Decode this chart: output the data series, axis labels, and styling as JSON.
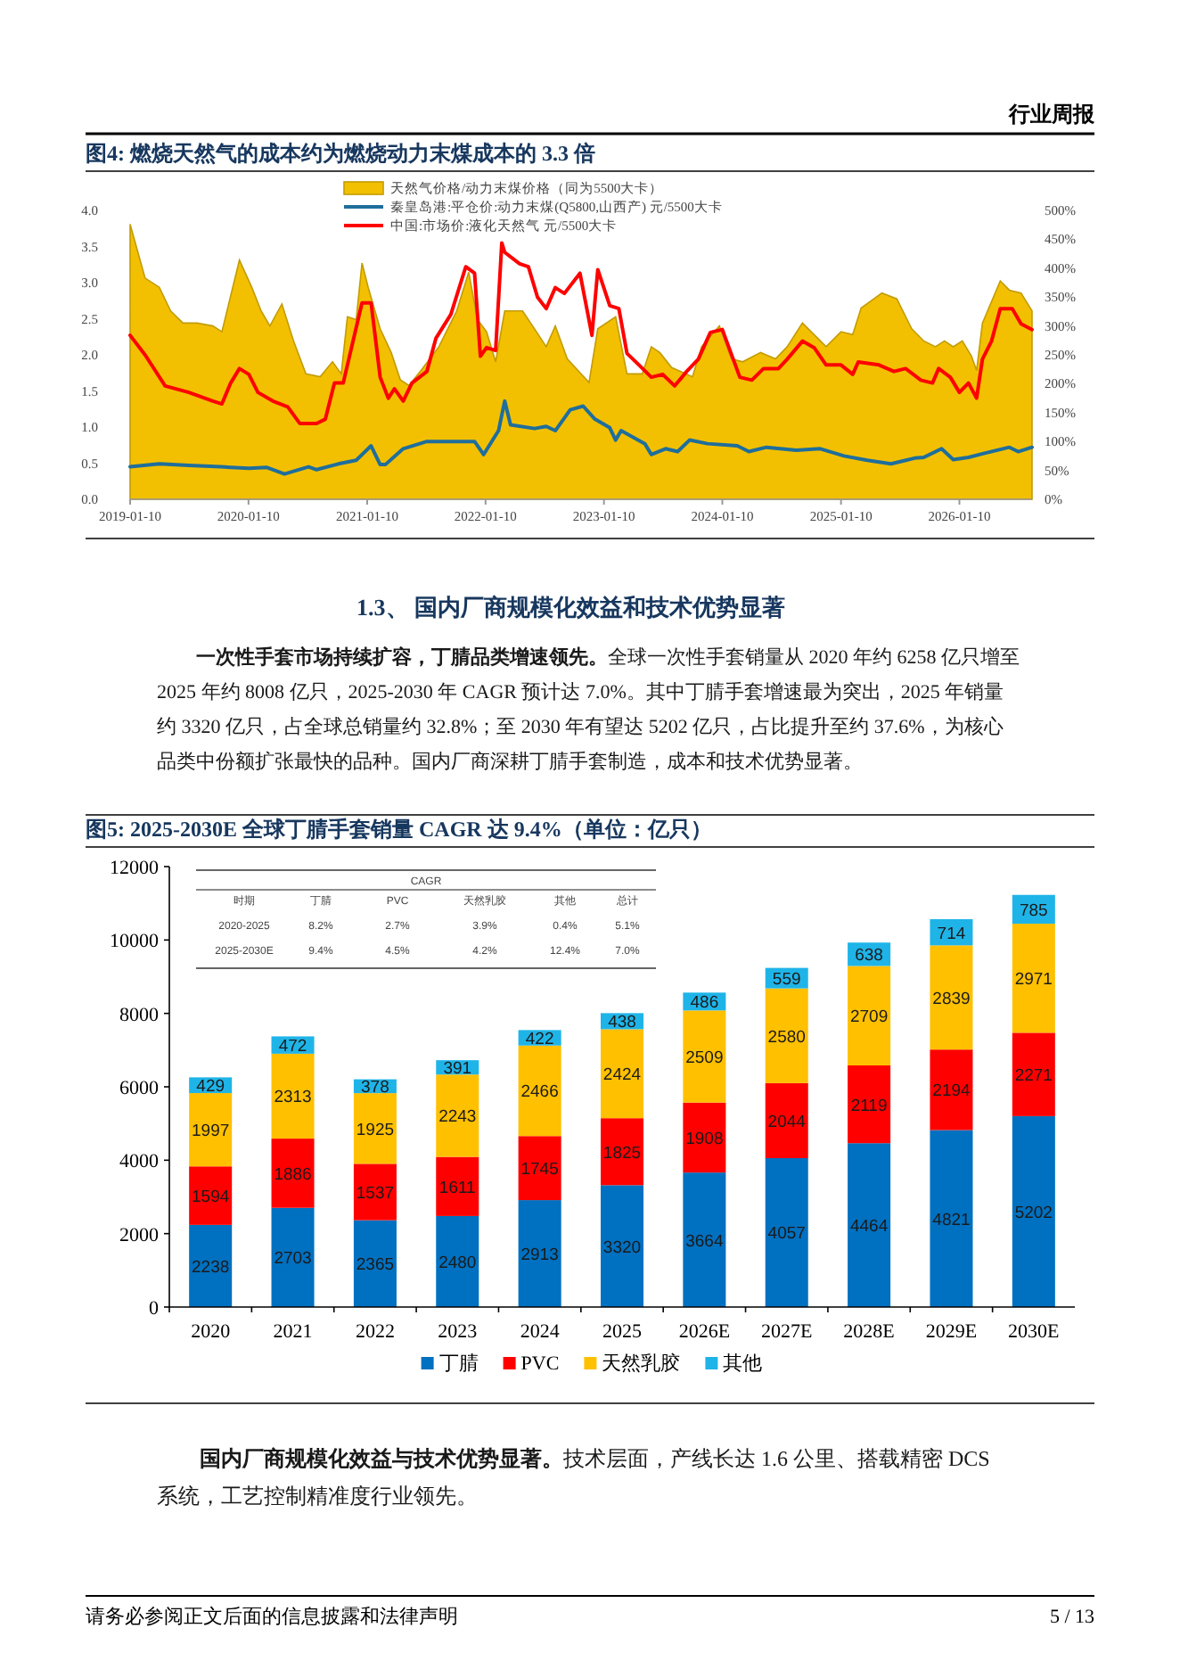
{
  "chart_data": [
    {
      "type": "other",
      "annotations": [
        "行业周报"
      ]
    },
    {
      "type": "line",
      "title": "图4: 燃烧天然气的成本约为燃烧动力末煤成本的 3.3 倍",
      "legend": "top",
      "xlim": [
        "2019-01-10",
        "2026-08-22"
      ],
      "xticks": [
        "2019-01-10",
        "2020-01-10",
        "2021-01-10",
        "2022-01-10",
        "2023-01-10",
        "2024-01-10",
        "2025-01-10",
        "2026-01-10"
      ],
      "ylim": [
        0,
        4
      ],
      "yticks": [
        {
          "value": 0,
          "label": "0.0"
        },
        {
          "value": 0.5,
          "label": "0.5"
        },
        {
          "value": 1,
          "label": "1.0"
        },
        {
          "value": 1.5,
          "label": "1.5"
        },
        {
          "value": 2,
          "label": "2.0"
        },
        {
          "value": 2.5,
          "label": "2.5"
        },
        {
          "value": 3,
          "label": "3.0"
        },
        {
          "value": 3.5,
          "label": "3.5"
        },
        {
          "value": 4,
          "label": "4.0"
        }
      ],
      "y2lim": [
        0,
        500
      ],
      "y2ticks": [
        {
          "value": 0,
          "label": "0%"
        },
        {
          "value": 50,
          "label": "50%"
        },
        {
          "value": 100,
          "label": "100%"
        },
        {
          "value": 150,
          "label": "150%"
        },
        {
          "value": 200,
          "label": "200%"
        },
        {
          "value": 250,
          "label": "250%"
        },
        {
          "value": 300,
          "label": "300%"
        },
        {
          "value": 350,
          "label": "350%"
        },
        {
          "value": 400,
          "label": "400%"
        },
        {
          "value": 450,
          "label": "450%"
        },
        {
          "value": 500,
          "label": "500%"
        }
      ],
      "series": [
        {
          "name": "天然气价格/动力末煤价格（同为5500大卡）",
          "type": "area",
          "axis": "y2",
          "color": "#f2c000",
          "x": [
            "2019-01-10",
            "2019-02-25",
            "2019-04-10",
            "2019-05-15",
            "2019-06-22",
            "2019-08-05",
            "2019-09-22",
            "2019-10-20",
            "2019-11-16",
            "2019-12-13",
            "2020-01-20",
            "2020-02-18",
            "2020-03-16",
            "2020-04-22",
            "2020-05-28",
            "2020-07-05",
            "2020-08-18",
            "2020-09-25",
            "2020-10-22",
            "2020-11-10",
            "2020-12-07",
            "2020-12-25",
            "2021-01-13",
            "2021-02-19",
            "2021-03-25",
            "2021-04-22",
            "2021-05-19",
            "2021-06-25",
            "2021-08-19",
            "2021-10-13",
            "2021-11-19",
            "2021-12-16",
            "2022-01-13",
            "2022-02-10",
            "2022-03-10",
            "2022-05-04",
            "2022-06-10",
            "2022-07-16",
            "2022-08-13",
            "2022-09-19",
            "2022-11-25",
            "2022-12-22",
            "2023-02-15",
            "2023-03-22",
            "2023-05-08",
            "2023-06-05",
            "2023-07-01",
            "2023-08-07",
            "2023-10-10",
            "2023-11-07",
            "2024-01-01",
            "2024-02-07",
            "2024-03-13",
            "2024-05-07",
            "2024-06-22",
            "2024-07-28",
            "2024-09-13",
            "2024-10-19",
            "2024-11-25",
            "2025-01-10",
            "2025-02-15",
            "2025-03-13",
            "2025-05-16",
            "2025-07-01",
            "2025-08-16",
            "2025-09-22",
            "2025-10-28",
            "2025-11-25",
            "2025-12-22",
            "2026-01-19",
            "2026-02-16",
            "2026-03-04",
            "2026-03-22",
            "2026-05-16",
            "2026-06-13",
            "2026-07-19",
            "2026-08-22"
          ],
          "values": [
            476,
            383,
            367,
            326,
            305,
            305,
            300,
            290,
            352,
            414,
            367,
            326,
            300,
            338,
            274,
            217,
            212,
            238,
            217,
            316,
            311,
            409,
            367,
            295,
            254,
            207,
            197,
            223,
            264,
            326,
            393,
            311,
            290,
            238,
            326,
            326,
            295,
            264,
            300,
            243,
            202,
            295,
            316,
            217,
            217,
            264,
            254,
            228,
            212,
            264,
            300,
            243,
            238,
            254,
            243,
            264,
            305,
            285,
            264,
            290,
            285,
            331,
            357,
            347,
            295,
            274,
            264,
            274,
            264,
            274,
            248,
            223,
            305,
            378,
            362,
            357,
            326
          ]
        },
        {
          "name": "秦皇岛港:平仓价:动力末煤(Q5800,山西产) 元/5500大卡",
          "type": "line",
          "color": "#1f6e9c",
          "x": [
            "2019-01-10",
            "2019-04-10",
            "2019-07-10",
            "2019-10-16",
            "2020-01-11",
            "2020-03-07",
            "2020-04-30",
            "2020-07-13",
            "2020-08-07",
            "2020-10-13",
            "2020-12-07",
            "2021-01-22",
            "2021-02-19",
            "2021-03-07",
            "2021-05-01",
            "2021-07-13",
            "2021-12-07",
            "2022-01-04",
            "2022-02-19",
            "2022-03-10",
            "2022-03-28",
            "2022-06-10",
            "2022-07-16",
            "2022-08-13",
            "2022-09-28",
            "2022-11-07",
            "2022-12-13",
            "2023-01-28",
            "2023-02-15",
            "2023-03-04",
            "2023-05-16",
            "2023-06-05",
            "2023-07-19",
            "2023-08-25",
            "2023-10-01",
            "2023-11-25",
            "2024-02-25",
            "2024-04-01",
            "2024-05-25",
            "2024-08-25",
            "2024-11-07",
            "2025-01-19",
            "2025-04-01",
            "2025-06-13",
            "2025-08-25",
            "2025-09-22",
            "2025-11-16",
            "2025-12-22",
            "2026-02-07",
            "2026-03-31",
            "2026-06-13",
            "2026-07-10",
            "2026-08-22"
          ],
          "values": [
            0.45,
            0.49,
            0.47,
            0.45,
            0.43,
            0.44,
            0.35,
            0.45,
            0.41,
            0.49,
            0.54,
            0.74,
            0.48,
            0.48,
            0.7,
            0.8,
            0.8,
            0.62,
            0.95,
            1.36,
            1.03,
            0.98,
            1.01,
            0.95,
            1.24,
            1.29,
            1.11,
            0.99,
            0.82,
            0.95,
            0.77,
            0.62,
            0.7,
            0.66,
            0.82,
            0.77,
            0.74,
            0.66,
            0.72,
            0.68,
            0.7,
            0.6,
            0.54,
            0.49,
            0.57,
            0.58,
            0.7,
            0.55,
            0.58,
            0.64,
            0.72,
            0.66,
            0.72
          ]
        },
        {
          "name": "中国:市场价:液化天然气 元/5500大卡",
          "type": "line",
          "color": "#ff0000",
          "x": [
            "2019-01-10",
            "2019-02-25",
            "2019-04-28",
            "2019-07-10",
            "2019-09-22",
            "2019-10-20",
            "2019-11-16",
            "2019-12-13",
            "2020-01-11",
            "2020-02-08",
            "2020-03-25",
            "2020-05-10",
            "2020-06-16",
            "2020-08-07",
            "2020-09-03",
            "2020-10-01",
            "2020-10-28",
            "2020-12-25",
            "2021-01-22",
            "2021-02-19",
            "2021-03-16",
            "2021-04-04",
            "2021-05-01",
            "2021-05-28",
            "2021-07-13",
            "2021-08-10",
            "2021-09-25",
            "2021-11-10",
            "2021-12-07",
            "2021-12-25",
            "2022-01-13",
            "2022-02-10",
            "2022-03-01",
            "2022-03-10",
            "2022-04-25",
            "2022-05-22",
            "2022-06-19",
            "2022-07-16",
            "2022-08-13",
            "2022-09-10",
            "2022-10-28",
            "2022-12-04",
            "2022-12-22",
            "2023-01-28",
            "2023-02-25",
            "2023-03-22",
            "2023-04-28",
            "2023-06-05",
            "2023-07-10",
            "2023-08-16",
            "2023-09-22",
            "2023-10-28",
            "2023-12-04",
            "2024-01-10",
            "2024-03-04",
            "2024-04-10",
            "2024-05-16",
            "2024-07-01",
            "2024-07-28",
            "2024-09-13",
            "2024-10-19",
            "2024-11-25",
            "2025-01-10",
            "2025-02-15",
            "2025-03-04",
            "2025-05-07",
            "2025-06-22",
            "2025-07-28",
            "2025-09-13",
            "2025-10-19",
            "2025-11-07",
            "2025-12-13",
            "2026-01-10",
            "2026-02-07",
            "2026-03-04",
            "2026-03-22",
            "2026-04-19",
            "2026-05-16",
            "2026-06-22",
            "2026-07-19",
            "2026-08-22"
          ],
          "values": [
            2.27,
            2.0,
            1.57,
            1.48,
            1.36,
            1.32,
            1.61,
            1.81,
            1.73,
            1.48,
            1.36,
            1.28,
            1.05,
            1.05,
            1.11,
            1.61,
            1.61,
            2.72,
            2.72,
            1.69,
            1.4,
            1.53,
            1.36,
            1.61,
            1.77,
            2.23,
            2.56,
            3.22,
            3.13,
            1.98,
            2.1,
            2.06,
            3.55,
            3.42,
            3.26,
            3.22,
            2.8,
            2.64,
            2.93,
            2.85,
            3.13,
            2.27,
            3.18,
            2.68,
            2.64,
            2.02,
            1.86,
            1.69,
            1.73,
            1.57,
            1.77,
            1.94,
            2.31,
            2.35,
            1.69,
            1.65,
            1.81,
            1.81,
            1.94,
            2.19,
            2.1,
            1.86,
            1.86,
            1.73,
            1.9,
            1.86,
            1.77,
            1.81,
            1.65,
            1.61,
            1.81,
            1.69,
            1.48,
            1.61,
            1.4,
            1.94,
            2.19,
            2.64,
            2.64,
            2.43,
            2.35
          ]
        }
      ]
    },
    {
      "type": "other",
      "title": "1.3、 国内厂商规模化效益和技术优势显著",
      "annotations": [
        "一次性手套市场持续扩容，丁腈品类增速领先。",
        "全球一次性手套销量从 2020 年约 6258 亿只增至 2025 年约 8008 亿只，2025-2030 年 CAGR 预计达 7.0%。其中丁腈手套增速最为突出，2025 年销量约 3320 亿只，占全球总销量约 32.8%；至 2030 年有望达 5202 亿只，占比提升至约 37.6%，为核心品类中份额扩张最快的品种。国内厂商深耕丁腈手套制造，成本和技术优势显著。"
      ]
    },
    {
      "type": "bar",
      "title": "图5: 2025-2030E 全球丁腈手套销量 CAGR 达 9.4%（单位：亿只）",
      "stacked": true,
      "data_labels": true,
      "legend": "bottom",
      "categories": [
        "2020",
        "2021",
        "2022",
        "2023",
        "2024",
        "2025",
        "2026E",
        "2027E",
        "2028E",
        "2029E",
        "2030E"
      ],
      "ylim": [
        0,
        12000
      ],
      "yticks": [
        0,
        2000,
        4000,
        6000,
        8000,
        10000,
        12000
      ],
      "series": [
        {
          "name": "丁腈",
          "color": "#0070c0",
          "values": [
            2238,
            2703,
            2365,
            2480,
            2913,
            3320,
            3664,
            4057,
            4464,
            4821,
            5202
          ]
        },
        {
          "name": "PVC",
          "color": "#ff0000",
          "values": [
            1594,
            1886,
            1537,
            1611,
            1745,
            1825,
            1908,
            2044,
            2119,
            2194,
            2271
          ]
        },
        {
          "name": "天然乳胶",
          "color": "#ffc000",
          "values": [
            1997,
            2313,
            1925,
            2243,
            2466,
            2424,
            2509,
            2580,
            2709,
            2839,
            2971
          ]
        },
        {
          "name": "其他",
          "color": "#1fb4e8",
          "values": [
            429,
            472,
            378,
            391,
            422,
            438,
            486,
            559,
            638,
            714,
            785
          ]
        }
      ]
    },
    {
      "type": "other",
      "title": "CAGR",
      "annotations": [
        "时期",
        "丁腈",
        "PVC",
        "天然乳胶",
        "其他",
        "总计",
        "2020-2025",
        "8.2%",
        "2.7%",
        "3.9%",
        "0.4%",
        "5.1%",
        "2025-2030E",
        "9.4%",
        "4.5%",
        "4.2%",
        "12.4%",
        "7.0%"
      ]
    },
    {
      "type": "other",
      "annotations": [
        "国内厂商规模化效益与技术优势显著。",
        "技术层面，产线长达 1.6 公里、搭载精密 DCS 系统，工艺控制精准度行业领先。",
        "请务必参阅正文后面的信息披露和法律声明",
        "5 / 13"
      ]
    }
  ]
}
